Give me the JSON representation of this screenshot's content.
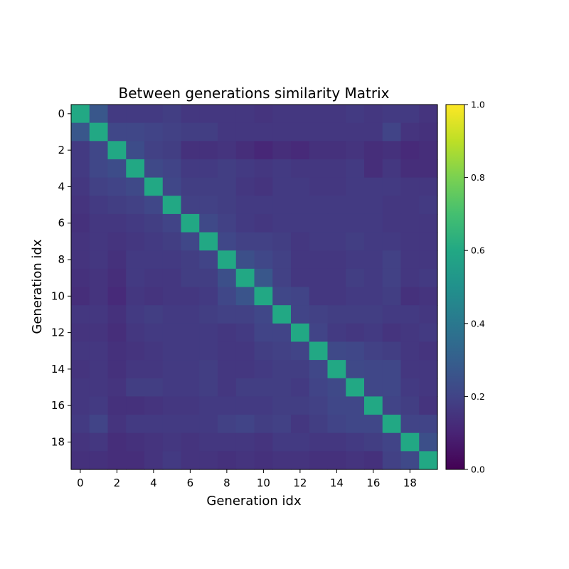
{
  "chart_data": {
    "type": "heatmap",
    "title": "Between generations similarity Matrix",
    "xlabel": "Generation idx",
    "ylabel": "Generation idx",
    "x_ticks": [
      "0",
      "2",
      "4",
      "6",
      "8",
      "10",
      "12",
      "14",
      "16",
      "18"
    ],
    "y_ticks": [
      "0",
      "2",
      "4",
      "6",
      "8",
      "10",
      "12",
      "14",
      "16",
      "18"
    ],
    "colorbar": {
      "min": 0.0,
      "max": 1.0,
      "ticks": [
        "0.0",
        "0.2",
        "0.4",
        "0.6",
        "0.8",
        "1.0"
      ],
      "colormap": "viridis"
    },
    "n": 20,
    "matrix": [
      [
        0.6,
        0.27,
        0.17,
        0.17,
        0.17,
        0.18,
        0.16,
        0.16,
        0.16,
        0.16,
        0.15,
        0.16,
        0.16,
        0.16,
        0.16,
        0.17,
        0.16,
        0.17,
        0.17,
        0.15
      ],
      [
        0.27,
        0.6,
        0.21,
        0.21,
        0.2,
        0.19,
        0.18,
        0.18,
        0.16,
        0.16,
        0.16,
        0.16,
        0.16,
        0.16,
        0.16,
        0.16,
        0.16,
        0.2,
        0.15,
        0.14
      ],
      [
        0.17,
        0.21,
        0.6,
        0.23,
        0.19,
        0.18,
        0.14,
        0.14,
        0.15,
        0.13,
        0.11,
        0.13,
        0.12,
        0.14,
        0.14,
        0.15,
        0.13,
        0.14,
        0.12,
        0.13
      ],
      [
        0.17,
        0.21,
        0.23,
        0.6,
        0.22,
        0.2,
        0.17,
        0.17,
        0.18,
        0.17,
        0.16,
        0.17,
        0.16,
        0.16,
        0.16,
        0.17,
        0.13,
        0.16,
        0.13,
        0.13
      ],
      [
        0.16,
        0.19,
        0.2,
        0.22,
        0.6,
        0.21,
        0.18,
        0.18,
        0.18,
        0.16,
        0.15,
        0.17,
        0.17,
        0.16,
        0.16,
        0.17,
        0.17,
        0.17,
        0.16,
        0.16
      ],
      [
        0.15,
        0.17,
        0.18,
        0.19,
        0.21,
        0.6,
        0.19,
        0.19,
        0.18,
        0.17,
        0.17,
        0.17,
        0.17,
        0.17,
        0.17,
        0.17,
        0.17,
        0.16,
        0.16,
        0.17
      ],
      [
        0.14,
        0.16,
        0.16,
        0.17,
        0.18,
        0.2,
        0.6,
        0.22,
        0.19,
        0.17,
        0.16,
        0.17,
        0.17,
        0.17,
        0.17,
        0.17,
        0.17,
        0.16,
        0.16,
        0.16
      ],
      [
        0.15,
        0.16,
        0.15,
        0.16,
        0.17,
        0.18,
        0.21,
        0.6,
        0.21,
        0.19,
        0.19,
        0.18,
        0.16,
        0.17,
        0.17,
        0.18,
        0.17,
        0.17,
        0.16,
        0.16
      ],
      [
        0.15,
        0.16,
        0.14,
        0.17,
        0.17,
        0.17,
        0.18,
        0.2,
        0.6,
        0.24,
        0.21,
        0.19,
        0.16,
        0.16,
        0.16,
        0.17,
        0.17,
        0.19,
        0.16,
        0.16
      ],
      [
        0.14,
        0.15,
        0.13,
        0.17,
        0.16,
        0.16,
        0.18,
        0.18,
        0.24,
        0.6,
        0.27,
        0.19,
        0.16,
        0.16,
        0.16,
        0.18,
        0.17,
        0.19,
        0.16,
        0.17
      ],
      [
        0.13,
        0.15,
        0.12,
        0.16,
        0.15,
        0.16,
        0.16,
        0.17,
        0.21,
        0.26,
        0.6,
        0.21,
        0.2,
        0.16,
        0.16,
        0.17,
        0.17,
        0.18,
        0.14,
        0.15
      ],
      [
        0.16,
        0.16,
        0.14,
        0.17,
        0.18,
        0.17,
        0.17,
        0.18,
        0.19,
        0.19,
        0.21,
        0.6,
        0.2,
        0.19,
        0.18,
        0.18,
        0.18,
        0.17,
        0.17,
        0.16
      ],
      [
        0.15,
        0.15,
        0.13,
        0.16,
        0.17,
        0.17,
        0.17,
        0.17,
        0.16,
        0.17,
        0.2,
        0.2,
        0.6,
        0.2,
        0.17,
        0.16,
        0.17,
        0.15,
        0.16,
        0.17
      ],
      [
        0.16,
        0.16,
        0.14,
        0.15,
        0.16,
        0.17,
        0.17,
        0.17,
        0.16,
        0.16,
        0.18,
        0.19,
        0.2,
        0.6,
        0.22,
        0.21,
        0.19,
        0.18,
        0.16,
        0.15
      ],
      [
        0.15,
        0.16,
        0.14,
        0.16,
        0.16,
        0.17,
        0.17,
        0.18,
        0.16,
        0.16,
        0.17,
        0.18,
        0.18,
        0.21,
        0.6,
        0.22,
        0.21,
        0.21,
        0.16,
        0.16
      ],
      [
        0.16,
        0.16,
        0.15,
        0.18,
        0.18,
        0.17,
        0.17,
        0.18,
        0.16,
        0.18,
        0.18,
        0.18,
        0.17,
        0.2,
        0.22,
        0.6,
        0.21,
        0.21,
        0.17,
        0.16
      ],
      [
        0.16,
        0.17,
        0.14,
        0.14,
        0.15,
        0.16,
        0.16,
        0.17,
        0.17,
        0.17,
        0.17,
        0.18,
        0.18,
        0.19,
        0.21,
        0.21,
        0.6,
        0.2,
        0.18,
        0.15
      ],
      [
        0.17,
        0.2,
        0.15,
        0.17,
        0.17,
        0.17,
        0.17,
        0.17,
        0.19,
        0.2,
        0.18,
        0.19,
        0.16,
        0.18,
        0.2,
        0.21,
        0.21,
        0.6,
        0.2,
        0.2
      ],
      [
        0.15,
        0.16,
        0.13,
        0.14,
        0.15,
        0.16,
        0.15,
        0.16,
        0.16,
        0.16,
        0.15,
        0.17,
        0.17,
        0.16,
        0.16,
        0.17,
        0.18,
        0.2,
        0.6,
        0.24
      ],
      [
        0.14,
        0.14,
        0.13,
        0.13,
        0.15,
        0.17,
        0.15,
        0.15,
        0.14,
        0.15,
        0.14,
        0.15,
        0.15,
        0.14,
        0.14,
        0.15,
        0.14,
        0.19,
        0.22,
        0.6
      ]
    ]
  }
}
